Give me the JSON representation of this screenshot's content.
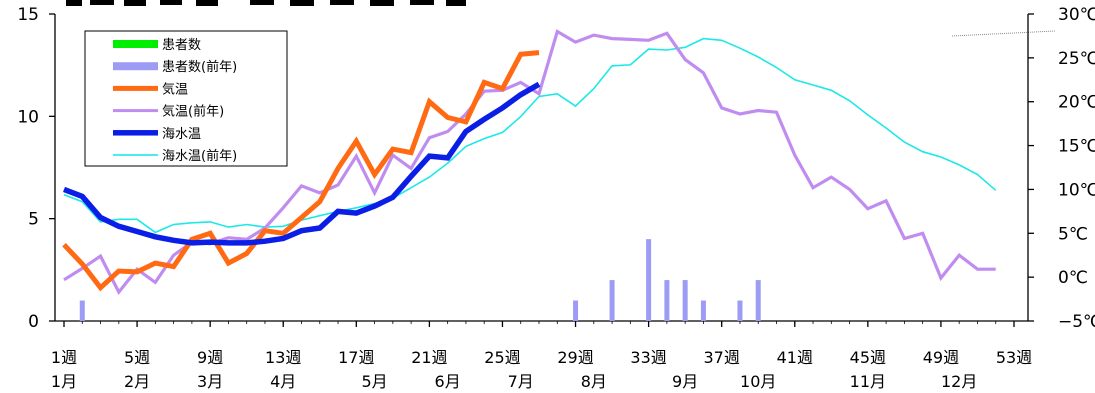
{
  "chart_data": {
    "type": "line",
    "title": "",
    "x_ticks": [
      "1週",
      "5週",
      "9週",
      "13週",
      "17週",
      "21週",
      "25週",
      "29週",
      "33週",
      "37週",
      "41週",
      "45週",
      "49週",
      "53週"
    ],
    "month_labels": [
      "1月",
      "2月",
      "3月",
      "4月",
      "5月",
      "6月",
      "7月",
      "8月",
      "9月",
      "10月",
      "11月",
      "12月"
    ],
    "month_label_weeks": [
      1,
      5,
      9,
      13,
      18,
      22,
      26,
      30,
      35,
      39,
      45,
      50
    ],
    "y_left_ticks": [
      "0",
      "5",
      "10",
      "15"
    ],
    "y_right_ticks": [
      "−5℃",
      "0℃",
      "5℃",
      "10℃",
      "15℃",
      "20℃",
      "25℃",
      "30℃"
    ],
    "y_left_range": [
      0,
      15
    ],
    "y_right_range": [
      -5,
      30
    ],
    "legend_position": "top-left",
    "series": [
      {
        "name": "患者数",
        "kind": "bar",
        "axis": "left",
        "color": "#00ee00",
        "x": [],
        "values": []
      },
      {
        "name": "患者数(前年)",
        "kind": "bar",
        "axis": "left",
        "color": "#9c9cf5",
        "x": [
          2,
          29,
          31,
          33,
          34,
          35,
          36,
          38,
          39
        ],
        "values": [
          1,
          1,
          2,
          4,
          2,
          2,
          1,
          1,
          2
        ]
      },
      {
        "name": "気温",
        "kind": "line",
        "axis": "right",
        "color": "#ff6a13",
        "x": [
          1,
          2,
          3,
          4,
          5,
          6,
          7,
          8,
          9,
          10,
          11,
          12,
          13,
          14,
          15,
          16,
          17,
          18,
          19,
          20,
          21,
          22,
          23,
          24,
          25,
          26,
          27
        ],
        "values": [
          3.7,
          1.5,
          -1.2,
          0.7,
          0.6,
          1.6,
          1.2,
          4.3,
          5.0,
          1.6,
          2.7,
          5.3,
          5.0,
          6.8,
          8.6,
          12.4,
          15.5,
          11.7,
          14.6,
          14.2,
          20.0,
          18.2,
          17.7,
          22.2,
          21.5,
          25.4,
          25.6
        ]
      },
      {
        "name": "気温(前年)",
        "kind": "line",
        "axis": "right",
        "color": "#c08cf0",
        "x": [
          1,
          2,
          3,
          4,
          5,
          6,
          7,
          8,
          9,
          10,
          11,
          12,
          13,
          14,
          15,
          16,
          17,
          18,
          19,
          20,
          21,
          22,
          23,
          24,
          25,
          26,
          27,
          28,
          29,
          30,
          31,
          32,
          33,
          34,
          35,
          36,
          37,
          38,
          39,
          40,
          41,
          42,
          43,
          44,
          45,
          46,
          47,
          48,
          49,
          50,
          51,
          52
        ],
        "values": [
          -0.3,
          1.0,
          2.4,
          -1.7,
          0.9,
          -0.6,
          2.5,
          4.0,
          3.8,
          4.5,
          4.3,
          5.6,
          7.9,
          10.4,
          9.6,
          10.5,
          13.8,
          9.6,
          13.9,
          12.4,
          15.9,
          16.6,
          18.6,
          21.2,
          21.3,
          22.2,
          20.9,
          28.0,
          26.8,
          27.6,
          27.2,
          27.1,
          27.0,
          27.8,
          24.8,
          23.3,
          19.3,
          18.6,
          19.0,
          18.8,
          13.9,
          10.2,
          11.4,
          10.0,
          7.8,
          8.7,
          4.4,
          5.0,
          -0.1,
          2.5,
          0.9,
          0.9
        ]
      },
      {
        "name": "海水温",
        "kind": "line",
        "axis": "right",
        "color": "#0a1ee6",
        "x": [
          1,
          2,
          3,
          4,
          5,
          6,
          7,
          8,
          9,
          10,
          11,
          12,
          13,
          14,
          15,
          16,
          17,
          18,
          19,
          20,
          21,
          22,
          23,
          24,
          25,
          26,
          27
        ],
        "values": [
          10.0,
          9.2,
          6.8,
          5.8,
          5.2,
          4.6,
          4.2,
          3.9,
          4.0,
          3.9,
          3.9,
          4.1,
          4.4,
          5.3,
          5.6,
          7.5,
          7.3,
          8.1,
          9.1,
          11.5,
          13.8,
          13.6,
          16.6,
          18.0,
          19.3,
          20.8,
          22.0
        ]
      },
      {
        "name": "海水温(前年)",
        "kind": "line",
        "axis": "right",
        "color": "#1de8e8",
        "x": [
          1,
          2,
          3,
          4,
          5,
          6,
          7,
          8,
          9,
          10,
          11,
          12,
          13,
          14,
          15,
          16,
          17,
          18,
          19,
          20,
          21,
          22,
          23,
          24,
          25,
          26,
          27,
          28,
          29,
          30,
          31,
          32,
          33,
          34,
          35,
          36,
          37,
          38,
          39,
          40,
          41,
          42,
          43,
          44,
          45,
          46,
          47,
          48,
          49,
          50,
          51,
          52
        ],
        "values": [
          9.4,
          8.6,
          6.3,
          6.6,
          6.6,
          5.1,
          6.0,
          6.2,
          6.3,
          5.7,
          6.0,
          5.7,
          5.8,
          6.5,
          7.0,
          7.5,
          7.9,
          8.4,
          9.0,
          10.2,
          11.4,
          13.0,
          14.9,
          15.8,
          16.5,
          18.3,
          20.6,
          20.9,
          19.5,
          21.5,
          24.1,
          24.2,
          26.0,
          25.9,
          26.2,
          27.2,
          27.0,
          26.1,
          25.1,
          23.9,
          22.5,
          21.9,
          21.3,
          20.1,
          18.5,
          17.0,
          15.4,
          14.3,
          13.7,
          12.8,
          11.7,
          9.9
        ]
      }
    ]
  }
}
